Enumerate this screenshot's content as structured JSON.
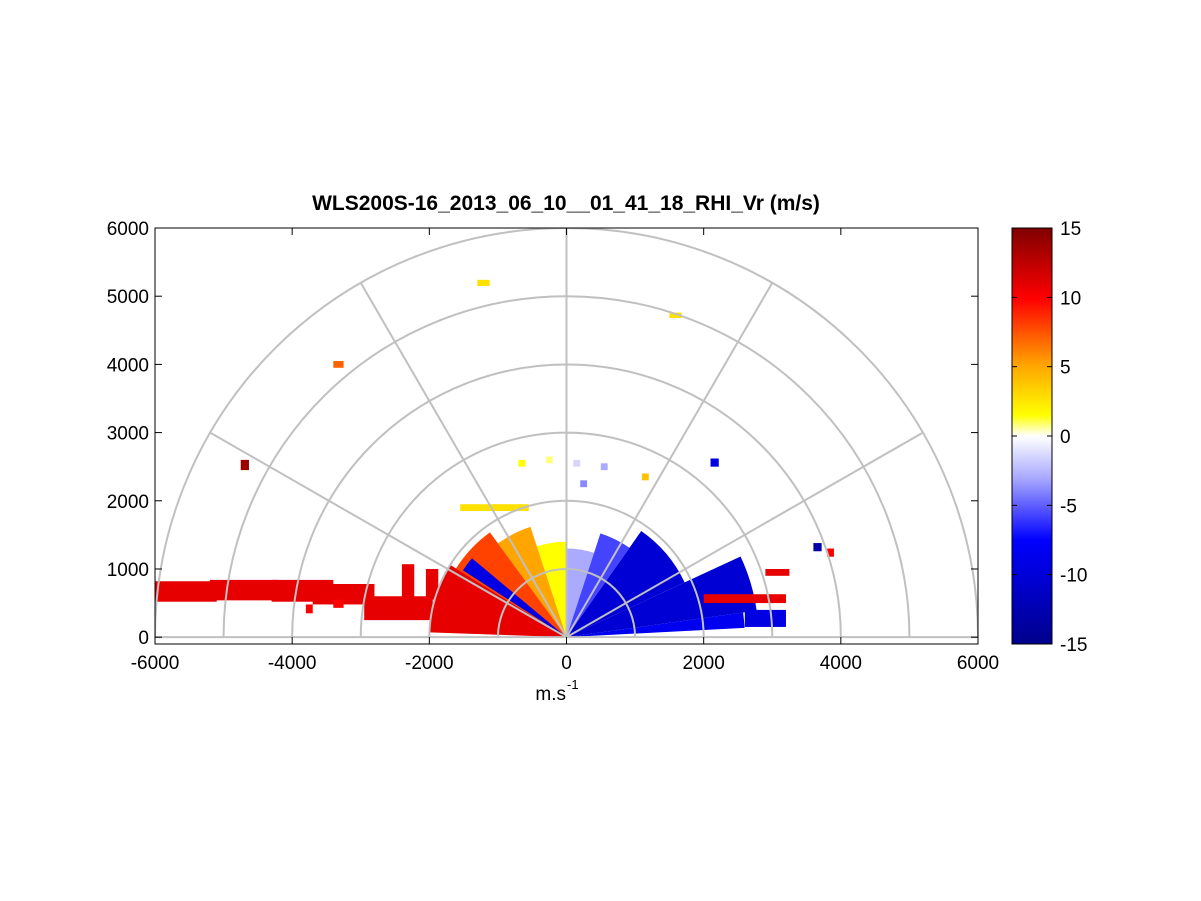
{
  "chart_data": {
    "type": "heatmap",
    "subtype": "polar-rhi-scan",
    "title": "WLS200S-16_2013_06_10__01_41_18_RHI_Vr (m/s)",
    "xlabel_main": "m.s",
    "xlabel_sup": "-1",
    "ylabel": "",
    "xlim": [
      -6000,
      6000
    ],
    "ylim": [
      -100,
      6000
    ],
    "x_ticks": [
      "-6000",
      "-4000",
      "-2000",
      "0",
      "2000",
      "4000",
      "6000"
    ],
    "x_tick_values": [
      -6000,
      -4000,
      -2000,
      0,
      2000,
      4000,
      6000
    ],
    "y_ticks": [
      "0",
      "1000",
      "2000",
      "3000",
      "4000",
      "5000",
      "6000"
    ],
    "y_tick_values": [
      0,
      1000,
      2000,
      3000,
      4000,
      5000,
      6000
    ],
    "polar_grid": {
      "range_rings": [
        1000,
        2000,
        3000,
        4000,
        5000,
        6000
      ],
      "spokes_deg": [
        0,
        30,
        60,
        90,
        120,
        150,
        180
      ]
    },
    "colorbar": {
      "min": -15,
      "max": 15,
      "ticks": [
        "15",
        "10",
        "5",
        "0",
        "-5",
        "-10",
        "-15"
      ],
      "tick_values": [
        15,
        10,
        5,
        0,
        -5,
        -10,
        -15
      ],
      "colors_top_to_bottom": [
        "#800000",
        "#ff0000",
        "#ffa500",
        "#ffff00",
        "#ffffff",
        "#aaaaff",
        "#0000ff",
        "#00008b"
      ]
    },
    "radial_velocity_sectors": [
      {
        "az_from_deg": 90,
        "az_to_deg": 108,
        "range_to_m": 1400,
        "vr": 2
      },
      {
        "az_from_deg": 108,
        "az_to_deg": 126,
        "range_to_m": 1700,
        "vr": 5
      },
      {
        "az_from_deg": 126,
        "az_to_deg": 148,
        "range_to_m": 1900,
        "vr": 8
      },
      {
        "az_from_deg": 148,
        "az_to_deg": 178,
        "range_to_m": 2000,
        "vr": 11
      },
      {
        "az_from_deg": 72,
        "az_to_deg": 90,
        "range_to_m": 1300,
        "vr": -2
      },
      {
        "az_from_deg": 55,
        "az_to_deg": 72,
        "range_to_m": 1600,
        "vr": -5
      },
      {
        "az_from_deg": 25,
        "az_to_deg": 55,
        "range_to_m": 1900,
        "vr": -10
      },
      {
        "az_from_deg": 8,
        "az_to_deg": 25,
        "range_to_m": 2800,
        "vr": -10
      },
      {
        "az_from_deg": 3,
        "az_to_deg": 8,
        "range_to_m": 2600,
        "vr": -8
      },
      {
        "az_from_deg": 140,
        "az_to_deg": 147,
        "range_to_m": 1800,
        "vr": -9
      }
    ],
    "radial_velocity_blocks": [
      {
        "x": -6000,
        "y": 520,
        "w": 900,
        "h": 300,
        "vr": 11
      },
      {
        "x": -5200,
        "y": 540,
        "w": 1000,
        "h": 300,
        "vr": 11
      },
      {
        "x": -4300,
        "y": 520,
        "w": 900,
        "h": 320,
        "vr": 11
      },
      {
        "x": -3700,
        "y": 480,
        "w": 900,
        "h": 300,
        "vr": 11
      },
      {
        "x": -2950,
        "y": 250,
        "w": 1000,
        "h": 350,
        "vr": 11
      },
      {
        "x": -2400,
        "y": 520,
        "w": 180,
        "h": 550,
        "vr": 11
      },
      {
        "x": -2050,
        "y": 550,
        "w": 180,
        "h": 450,
        "vr": 11
      },
      {
        "x": -3400,
        "y": 430,
        "w": 150,
        "h": 120,
        "vr": 10
      },
      {
        "x": -3800,
        "y": 350,
        "w": 100,
        "h": 130,
        "vr": 10
      },
      {
        "x": 2000,
        "y": 500,
        "w": 1200,
        "h": 130,
        "vr": 11
      },
      {
        "x": 2600,
        "y": 150,
        "w": 600,
        "h": 250,
        "vr": -9
      },
      {
        "x": -1300,
        "y": 5150,
        "w": 180,
        "h": 90,
        "vr": 3
      },
      {
        "x": 1500,
        "y": 4680,
        "w": 180,
        "h": 80,
        "vr": 3
      },
      {
        "x": -3400,
        "y": 3950,
        "w": 150,
        "h": 100,
        "vr": 7
      },
      {
        "x": -4750,
        "y": 2450,
        "w": 120,
        "h": 150,
        "vr": 14
      },
      {
        "x": 2100,
        "y": 2500,
        "w": 120,
        "h": 120,
        "vr": -9
      },
      {
        "x": 3600,
        "y": 1260,
        "w": 120,
        "h": 120,
        "vr": -13
      },
      {
        "x": 3800,
        "y": 1180,
        "w": 100,
        "h": 120,
        "vr": 10
      },
      {
        "x": 2900,
        "y": 900,
        "w": 350,
        "h": 100,
        "vr": 11
      },
      {
        "x": -1550,
        "y": 1850,
        "w": 1000,
        "h": 100,
        "vr": 3
      },
      {
        "x": -700,
        "y": 2500,
        "w": 100,
        "h": 100,
        "vr": 2
      },
      {
        "x": -300,
        "y": 2550,
        "w": 100,
        "h": 100,
        "vr": 1
      },
      {
        "x": 100,
        "y": 2500,
        "w": 100,
        "h": 100,
        "vr": -1
      },
      {
        "x": 500,
        "y": 2450,
        "w": 100,
        "h": 100,
        "vr": -2
      },
      {
        "x": 1100,
        "y": 2300,
        "w": 100,
        "h": 100,
        "vr": 4
      },
      {
        "x": 200,
        "y": 2200,
        "w": 100,
        "h": 100,
        "vr": -3
      }
    ]
  }
}
